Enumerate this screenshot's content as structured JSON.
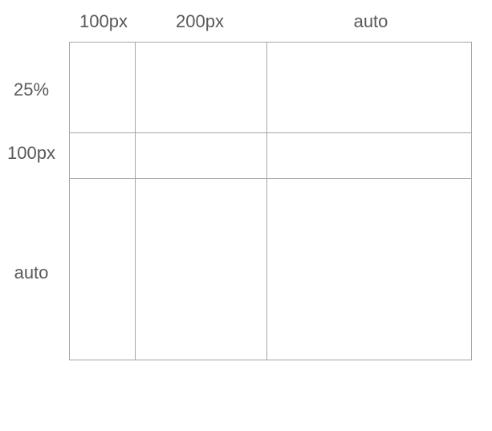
{
  "columns": [
    {
      "label": "100px"
    },
    {
      "label": "200px"
    },
    {
      "label": "auto"
    }
  ],
  "rows": [
    {
      "label": "25%"
    },
    {
      "label": "100px"
    },
    {
      "label": "auto"
    }
  ],
  "colors": {
    "label_text": "#595959",
    "grid_line": "#a6a6a6",
    "background": "#ffffff"
  }
}
